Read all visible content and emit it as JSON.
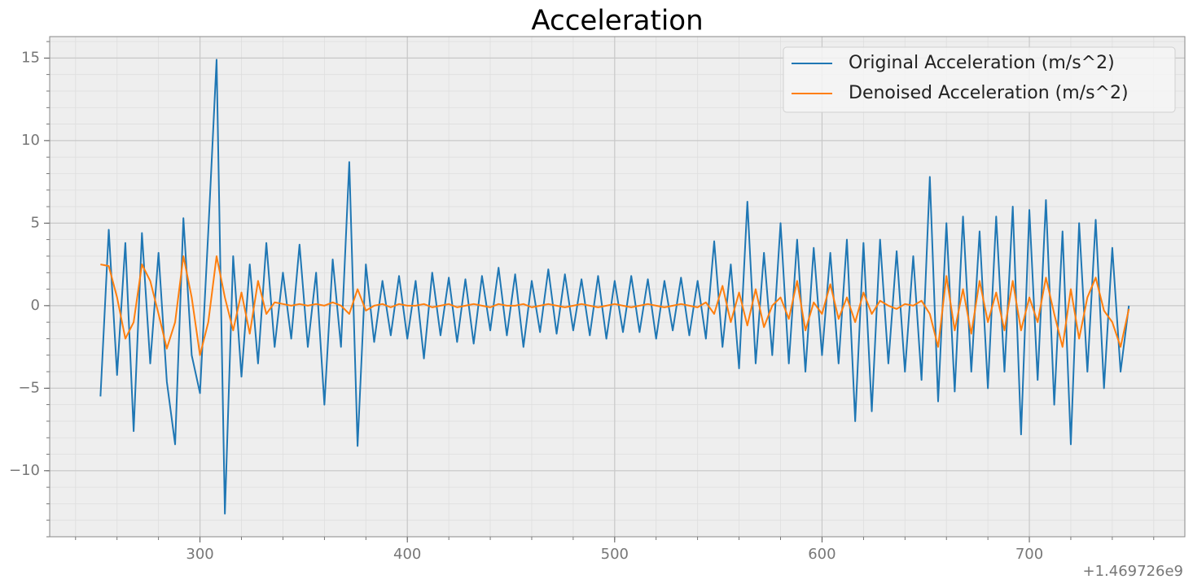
{
  "chart_data": {
    "type": "line",
    "title": "Acceleration",
    "x_offset_label": "+1.469726e9",
    "x": [
      252,
      256,
      260,
      264,
      268,
      272,
      276,
      280,
      284,
      288,
      292,
      296,
      300,
      304,
      308,
      312,
      316,
      320,
      324,
      328,
      332,
      336,
      340,
      344,
      348,
      352,
      356,
      360,
      364,
      368,
      372,
      376,
      380,
      384,
      388,
      392,
      396,
      400,
      404,
      408,
      412,
      416,
      420,
      424,
      428,
      432,
      436,
      440,
      444,
      448,
      452,
      456,
      460,
      464,
      468,
      472,
      476,
      480,
      484,
      488,
      492,
      496,
      500,
      504,
      508,
      512,
      516,
      520,
      524,
      528,
      532,
      536,
      540,
      544,
      548,
      552,
      556,
      560,
      564,
      568,
      572,
      576,
      580,
      584,
      588,
      592,
      596,
      600,
      604,
      608,
      612,
      616,
      620,
      624,
      628,
      632,
      636,
      640,
      644,
      648,
      652,
      656,
      660,
      664,
      668,
      672,
      676,
      680,
      684,
      688,
      692,
      696,
      700,
      704,
      708,
      712,
      716,
      720,
      724,
      728,
      732,
      736,
      740,
      744,
      748
    ],
    "series": [
      {
        "name": "Original Acceleration (m/s^2)",
        "color": "#1f77b4",
        "values": [
          -5.5,
          4.6,
          -4.2,
          3.8,
          -7.6,
          4.4,
          -3.5,
          3.2,
          -4.6,
          -8.4,
          5.3,
          -3.0,
          -5.3,
          4.5,
          14.9,
          -12.6,
          3.0,
          -4.3,
          2.5,
          -3.5,
          3.8,
          -2.5,
          2.0,
          -2.0,
          3.7,
          -2.5,
          2.0,
          -6.0,
          2.8,
          -2.5,
          8.7,
          -8.5,
          2.5,
          -2.2,
          1.5,
          -1.8,
          1.8,
          -2.0,
          1.5,
          -3.2,
          2.0,
          -1.8,
          1.7,
          -2.2,
          1.6,
          -2.3,
          1.8,
          -1.5,
          2.3,
          -1.8,
          1.9,
          -2.5,
          1.5,
          -1.6,
          2.2,
          -1.7,
          1.9,
          -1.5,
          1.6,
          -1.8,
          1.8,
          -2.0,
          1.5,
          -1.6,
          1.8,
          -1.6,
          1.6,
          -2.0,
          1.5,
          -1.5,
          1.7,
          -1.8,
          1.5,
          -2.0,
          3.9,
          -2.5,
          2.5,
          -3.8,
          6.3,
          -3.5,
          3.2,
          -3.0,
          5.0,
          -3.5,
          4.0,
          -4.0,
          3.5,
          -3.0,
          3.2,
          -3.5,
          4.0,
          -7.0,
          3.8,
          -6.4,
          4.0,
          -3.5,
          3.3,
          -4.0,
          3.0,
          -4.5,
          7.8,
          -5.8,
          5.0,
          -5.2,
          5.4,
          -4.0,
          4.5,
          -5.0,
          5.4,
          -4.0,
          6.0,
          -7.8,
          5.8,
          -4.5,
          6.4,
          -6.0,
          4.5,
          -8.4,
          5.0,
          -4.0,
          5.2,
          -5.0,
          3.5,
          -4.0,
          0.0
        ]
      },
      {
        "name": "Denoised Acceleration (m/s^2)",
        "color": "#ff7f0e",
        "values": [
          2.5,
          2.4,
          0.5,
          -2.0,
          -1.0,
          2.5,
          1.5,
          -0.5,
          -2.6,
          -1.0,
          3.0,
          0.5,
          -3.0,
          -1.0,
          3.0,
          0.5,
          -1.5,
          0.8,
          -1.7,
          1.5,
          -0.5,
          0.2,
          0.1,
          0.0,
          0.1,
          0.0,
          0.1,
          0.0,
          0.2,
          0.0,
          -0.5,
          1.0,
          -0.3,
          0.0,
          0.1,
          -0.1,
          0.1,
          0.0,
          0.0,
          0.1,
          -0.1,
          0.0,
          0.1,
          -0.1,
          0.0,
          0.1,
          0.0,
          -0.1,
          0.1,
          0.0,
          0.0,
          0.1,
          -0.1,
          0.0,
          0.1,
          0.0,
          -0.1,
          0.0,
          0.1,
          0.0,
          -0.1,
          0.0,
          0.1,
          0.0,
          -0.1,
          0.0,
          0.1,
          0.0,
          -0.1,
          0.0,
          0.1,
          0.0,
          -0.1,
          0.2,
          -0.5,
          1.2,
          -1.0,
          0.8,
          -1.2,
          1.0,
          -1.3,
          0.0,
          0.5,
          -0.8,
          1.5,
          -1.5,
          0.2,
          -0.5,
          1.3,
          -0.8,
          0.5,
          -1.0,
          0.8,
          -0.5,
          0.3,
          0.0,
          -0.2,
          0.1,
          0.0,
          0.3,
          -0.5,
          -2.5,
          1.8,
          -1.5,
          1.0,
          -1.7,
          1.5,
          -1.0,
          0.8,
          -1.5,
          1.5,
          -1.5,
          0.5,
          -1.0,
          1.7,
          -0.5,
          -2.5,
          1.0,
          -2.0,
          0.5,
          1.7,
          -0.3,
          -1.0,
          -2.5,
          -0.2
        ]
      }
    ],
    "xlim": [
      227.5,
      775
    ],
    "ylim": [
      -14,
      16.3
    ],
    "xticks": [
      300,
      400,
      500,
      600,
      700
    ],
    "yticks": [
      {
        "value": -10,
        "label": "−10"
      },
      {
        "value": -5,
        "label": "−5"
      },
      0,
      5,
      10,
      15
    ],
    "grid": true,
    "minor_grid": true,
    "legend": "upper right"
  }
}
